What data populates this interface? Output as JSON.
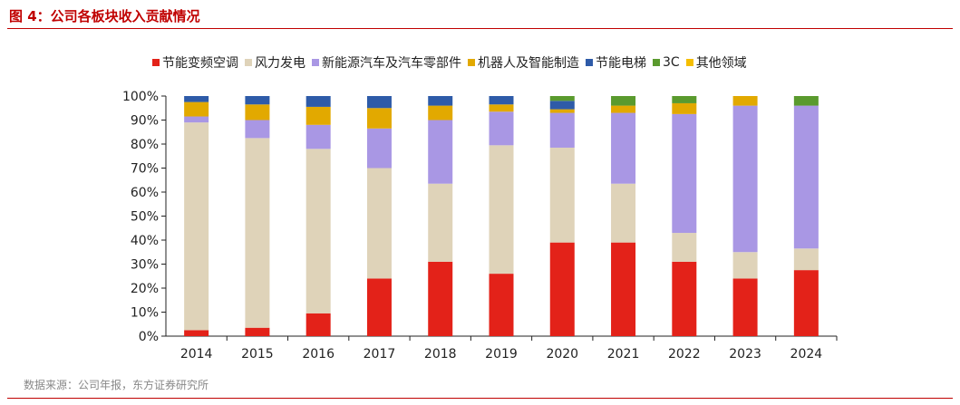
{
  "header": {
    "title": "图 4：公司各板块收入贡献情况"
  },
  "source": "数据来源：公司年报，东方证券研究所",
  "colors": {
    "accent": "#c00000"
  },
  "chart_data": {
    "type": "bar",
    "stacked": true,
    "percent": true,
    "title": "",
    "xlabel": "",
    "ylabel": "",
    "ylim": [
      0,
      100
    ],
    "y_ticks": [
      "0%",
      "10%",
      "20%",
      "30%",
      "40%",
      "50%",
      "60%",
      "70%",
      "80%",
      "90%",
      "100%"
    ],
    "categories": [
      "2014",
      "2015",
      "2016",
      "2017",
      "2018",
      "2019",
      "2020",
      "2021",
      "2022",
      "2023",
      "2024"
    ],
    "legend_position": "top",
    "grid": false,
    "series": [
      {
        "name": "节能变频空调",
        "color": "#e32219",
        "values": [
          2.5,
          3.5,
          9.5,
          24,
          31,
          26,
          39,
          39,
          31,
          24,
          27.5
        ]
      },
      {
        "name": "风力发电",
        "color": "#dfd3b9",
        "values": [
          86.5,
          79,
          68.5,
          46,
          32.5,
          53.5,
          39.5,
          24.5,
          12,
          11,
          9
        ]
      },
      {
        "name": "新能源汽车及汽车零部件",
        "color": "#a997e4",
        "values": [
          2.5,
          7.5,
          10,
          16.5,
          26.5,
          14,
          14.5,
          29.5,
          49.5,
          61,
          59.5
        ]
      },
      {
        "name": "机器人及智能制造",
        "color": "#e2a900",
        "values": [
          6,
          6.5,
          7.5,
          8.5,
          6,
          3,
          1.5,
          3,
          4.5,
          4,
          0
        ]
      },
      {
        "name": "节能电梯",
        "color": "#2e5ba8",
        "values": [
          2.5,
          3.5,
          4.5,
          5,
          4,
          3.5,
          3.5,
          0,
          0,
          0,
          0
        ]
      },
      {
        "name": "3C",
        "color": "#5a9a2e",
        "values": [
          0,
          0,
          0,
          0,
          0,
          0,
          2,
          4,
          3,
          0,
          4
        ]
      },
      {
        "name": "其他领域",
        "color": "#f5be00",
        "values": [
          0,
          0,
          0,
          0,
          0,
          0,
          0,
          0,
          0,
          0,
          0
        ]
      }
    ]
  }
}
